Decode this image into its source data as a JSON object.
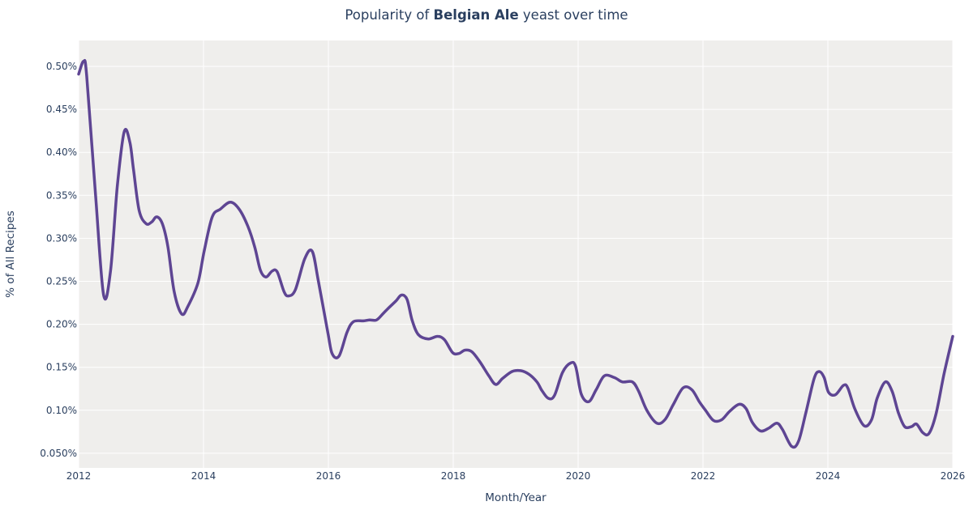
{
  "chart_data": {
    "type": "line",
    "title_parts": [
      "Popularity of ",
      "Belgian Ale",
      " yeast over time"
    ],
    "xlabel": "Month/Year",
    "ylabel": "% of All Recipes",
    "xlim": [
      2012,
      2026
    ],
    "ylim": [
      0.035,
      0.525
    ],
    "x_ticks": [
      2012,
      2014,
      2016,
      2018,
      2020,
      2022,
      2024,
      2026
    ],
    "x_tick_labels": [
      "2012",
      "2014",
      "2016",
      "2018",
      "2020",
      "2022",
      "2024",
      "2026"
    ],
    "y_ticks": [
      0.05,
      0.1,
      0.15,
      0.2,
      0.25,
      0.3,
      0.35,
      0.4,
      0.45,
      0.5
    ],
    "y_tick_labels": [
      "0.050%",
      "0.10%",
      "0.15%",
      "0.20%",
      "0.25%",
      "0.30%",
      "0.35%",
      "0.40%",
      "0.45%",
      "0.50%"
    ],
    "grid": true,
    "colors": {
      "line": "#5e4593",
      "plot_bg": "#efeeec",
      "grid": "#ffffff",
      "text": "#2a3f5f"
    },
    "series": [
      {
        "x": [
          2012.0,
          2012.08,
          2012.13,
          2012.27,
          2012.4,
          2012.51,
          2012.62,
          2012.73,
          2012.82,
          2012.88,
          2012.97,
          2013.08,
          2013.17,
          2013.25,
          2013.34,
          2013.43,
          2013.53,
          2013.65,
          2013.75,
          2013.91,
          2014.01,
          2014.14,
          2014.27,
          2014.43,
          2014.57,
          2014.71,
          2014.82,
          2014.91,
          2015.0,
          2015.1,
          2015.18,
          2015.29,
          2015.36,
          2015.47,
          2015.62,
          2015.74,
          2015.84,
          2015.99,
          2016.06,
          2016.17,
          2016.3,
          2016.4,
          2016.56,
          2016.66,
          2016.77,
          2016.87,
          2016.95,
          2017.08,
          2017.17,
          2017.26,
          2017.34,
          2017.44,
          2017.6,
          2017.75,
          2017.86,
          2017.99,
          2018.09,
          2018.19,
          2018.3,
          2018.43,
          2018.57,
          2018.68,
          2018.79,
          2018.94,
          2019.08,
          2019.21,
          2019.34,
          2019.42,
          2019.52,
          2019.62,
          2019.75,
          2019.88,
          2019.96,
          2020.05,
          2020.17,
          2020.29,
          2020.42,
          2020.58,
          2020.71,
          2020.87,
          2020.97,
          2021.1,
          2021.26,
          2021.39,
          2021.52,
          2021.68,
          2021.82,
          2021.94,
          2022.04,
          2022.17,
          2022.3,
          2022.43,
          2022.58,
          2022.69,
          2022.79,
          2022.92,
          2023.05,
          2023.18,
          2023.27,
          2023.42,
          2023.53,
          2023.65,
          2023.78,
          2023.86,
          2023.94,
          2024.01,
          2024.12,
          2024.25,
          2024.32,
          2024.43,
          2024.58,
          2024.7,
          2024.79,
          2024.92,
          2025.03,
          2025.13,
          2025.23,
          2025.34,
          2025.42,
          2025.52,
          2025.62,
          2025.73,
          2025.86,
          2026.0
        ],
        "y": [
          0.491,
          0.506,
          0.488,
          0.351,
          0.234,
          0.262,
          0.361,
          0.424,
          0.412,
          0.379,
          0.332,
          0.317,
          0.319,
          0.325,
          0.317,
          0.29,
          0.238,
          0.212,
          0.221,
          0.248,
          0.285,
          0.325,
          0.334,
          0.342,
          0.334,
          0.314,
          0.29,
          0.263,
          0.255,
          0.262,
          0.261,
          0.238,
          0.233,
          0.24,
          0.276,
          0.285,
          0.25,
          0.191,
          0.166,
          0.163,
          0.191,
          0.203,
          0.204,
          0.205,
          0.205,
          0.212,
          0.218,
          0.227,
          0.234,
          0.229,
          0.205,
          0.188,
          0.183,
          0.186,
          0.182,
          0.167,
          0.166,
          0.17,
          0.168,
          0.156,
          0.14,
          0.13,
          0.137,
          0.145,
          0.146,
          0.142,
          0.133,
          0.123,
          0.114,
          0.117,
          0.144,
          0.155,
          0.151,
          0.119,
          0.11,
          0.124,
          0.14,
          0.138,
          0.133,
          0.133,
          0.122,
          0.1,
          0.085,
          0.089,
          0.106,
          0.126,
          0.124,
          0.11,
          0.1,
          0.088,
          0.089,
          0.099,
          0.107,
          0.102,
          0.086,
          0.076,
          0.079,
          0.085,
          0.078,
          0.058,
          0.064,
          0.098,
          0.137,
          0.145,
          0.138,
          0.121,
          0.118,
          0.129,
          0.126,
          0.102,
          0.082,
          0.089,
          0.114,
          0.133,
          0.122,
          0.097,
          0.081,
          0.081,
          0.084,
          0.074,
          0.073,
          0.095,
          0.142,
          0.186
        ]
      }
    ]
  }
}
